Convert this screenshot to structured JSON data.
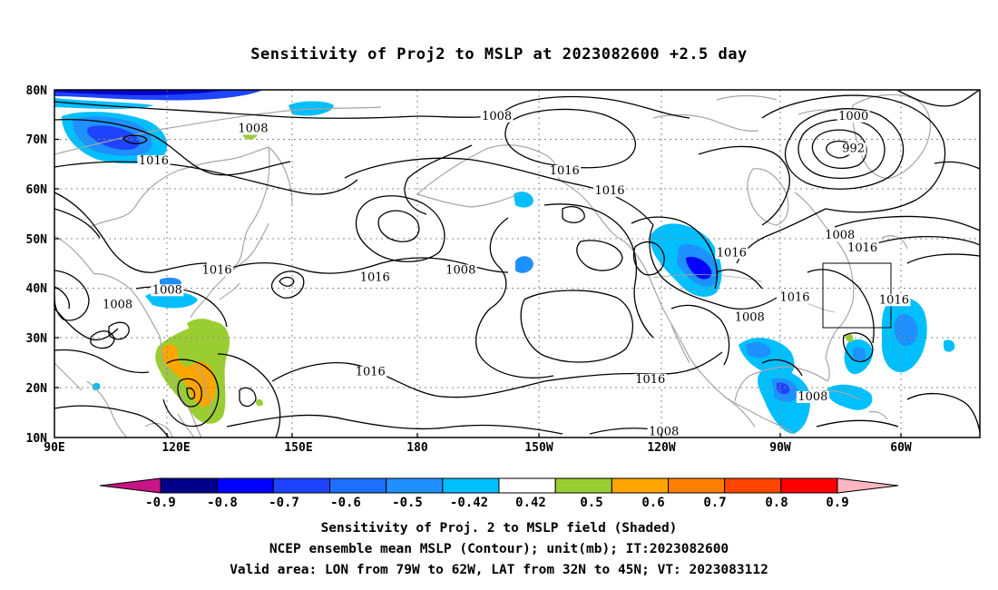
{
  "title": "Sensitivity of Proj2 to MSLP at 2023082600 +2.5 day",
  "captions": [
    "Sensitivity of Proj. 2 to MSLP field (Shaded)",
    "NCEP ensemble mean MSLP (Contour); unit(mb); IT:2023082600",
    "Valid area: LON from 79W to 62W, LAT from 32N to 45N; VT: 2023083112"
  ],
  "axes": {
    "x_ticks": [
      "90E",
      "120E",
      "150E",
      "180",
      "150W",
      "120W",
      "90W",
      "60W"
    ],
    "y_ticks": [
      "80N",
      "70N",
      "60N",
      "50N",
      "40N",
      "30N",
      "20N",
      "10N"
    ]
  },
  "colorbar": {
    "labels": [
      "-0.9",
      "-0.8",
      "-0.7",
      "-0.6",
      "-0.5",
      "-0.42",
      "0.42",
      "0.5",
      "0.6",
      "0.7",
      "0.8",
      "0.9"
    ],
    "colors": [
      "#c71585",
      "#00008b",
      "#0000ff",
      "#1e44ff",
      "#1e6fff",
      "#1e90ff",
      "#00bfff",
      "#ffffff",
      "#9acd32",
      "#ffa500",
      "#ff7f00",
      "#ff4500",
      "#ff0000",
      "#ffb6c1"
    ]
  },
  "contour_labels": [
    {
      "text": "1008",
      "lon": 134,
      "lat": 71.5
    },
    {
      "text": "1016",
      "lon": 112,
      "lat": 65
    },
    {
      "text": "1008",
      "lon": 188,
      "lat": 74
    },
    {
      "text": "1016",
      "lon": 203,
      "lat": 63
    },
    {
      "text": "1016",
      "lon": 213,
      "lat": 59
    },
    {
      "text": "1000",
      "lon": 267,
      "lat": 74
    },
    {
      "text": "992",
      "lon": 267,
      "lat": 67.5
    },
    {
      "text": "1008",
      "lon": 264,
      "lat": 50
    },
    {
      "text": "1016",
      "lon": 269,
      "lat": 47.5
    },
    {
      "text": "1016",
      "lon": 126,
      "lat": 43
    },
    {
      "text": "1016",
      "lon": 161,
      "lat": 41.5
    },
    {
      "text": "1008",
      "lon": 180,
      "lat": 43
    },
    {
      "text": "1016",
      "lon": 240,
      "lat": 46.5
    },
    {
      "text": "1008",
      "lon": 115,
      "lat": 39
    },
    {
      "text": "1008",
      "lon": 104,
      "lat": 36
    },
    {
      "text": "1016",
      "lon": 254,
      "lat": 37.5
    },
    {
      "text": "1008",
      "lon": 244,
      "lat": 33.5
    },
    {
      "text": "1016",
      "lon": 276,
      "lat": 37
    },
    {
      "text": "1016",
      "lon": 160,
      "lat": 22.5
    },
    {
      "text": "1016",
      "lon": 222,
      "lat": 21
    },
    {
      "text": "1008",
      "lon": 258,
      "lat": 17.5
    },
    {
      "text": "1008",
      "lon": 225,
      "lat": 10.5
    }
  ],
  "valid_area": {
    "lon_min": -79,
    "lon_max": -62,
    "lat_min": 32,
    "lat_max": 45
  }
}
